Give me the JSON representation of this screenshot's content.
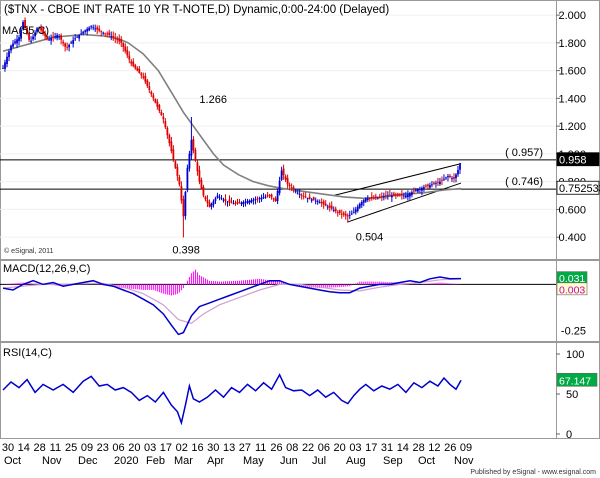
{
  "header": {
    "title": "($TNX - CBOE INT RATE 10 YR T-NOTE,D) Dynamic,0:00-24:00 (Delayed)",
    "ma_label": "MA(55,C)"
  },
  "watermark": "© eSignal, 2011",
  "footer": {
    "published": "Published by eSignal - www.esignal.com"
  },
  "colors": {
    "up_candle": "#0000cc",
    "down_candle": "#dd0000",
    "ma": "#808080",
    "macd_line": "#0000cc",
    "signal_line": "#d0a0d0",
    "histogram": "#ff00ff",
    "rsi_line": "#0000cc",
    "price_badge": "#000000",
    "current_badge": "#00aa44",
    "macd_badge_bg": "#ffffcc"
  },
  "chart_data": [
    {
      "type": "candlestick",
      "title": "($TNX - CBOE INT RATE 10 YR T-NOTE,D) Dynamic,0:00-24:00 (Delayed)",
      "ylim": [
        0.25,
        2.08
      ],
      "yticks": [
        "2.000",
        "1.800",
        "1.600",
        "1.400",
        "1.200",
        "1.000",
        "0.800",
        "0.600",
        "0.400"
      ],
      "ytick_values": [
        2.0,
        1.8,
        1.6,
        1.4,
        1.2,
        1.0,
        0.8,
        0.6,
        0.4
      ],
      "points": [
        [
          0,
          1.62
        ],
        [
          8,
          1.78
        ],
        [
          16,
          1.84
        ],
        [
          20,
          1.95
        ],
        [
          27,
          1.8
        ],
        [
          35,
          1.92
        ],
        [
          45,
          1.82
        ],
        [
          55,
          1.86
        ],
        [
          63,
          1.76
        ],
        [
          70,
          1.82
        ],
        [
          80,
          1.88
        ],
        [
          88,
          1.92
        ],
        [
          98,
          1.88
        ],
        [
          108,
          1.85
        ],
        [
          118,
          1.8
        ],
        [
          128,
          1.65
        ],
        [
          140,
          1.55
        ],
        [
          150,
          1.4
        ],
        [
          160,
          1.25
        ],
        [
          168,
          1.02
        ],
        [
          176,
          0.78
        ],
        [
          180,
          0.55
        ],
        [
          184,
          0.9
        ],
        [
          188,
          1.1
        ],
        [
          192,
          0.95
        ],
        [
          196,
          0.8
        ],
        [
          200,
          0.7
        ],
        [
          206,
          0.62
        ],
        [
          214,
          0.7
        ],
        [
          222,
          0.66
        ],
        [
          232,
          0.64
        ],
        [
          244,
          0.66
        ],
        [
          256,
          0.68
        ],
        [
          266,
          0.7
        ],
        [
          272,
          0.66
        ],
        [
          278,
          0.88
        ],
        [
          284,
          0.78
        ],
        [
          294,
          0.72
        ],
        [
          304,
          0.68
        ],
        [
          314,
          0.66
        ],
        [
          324,
          0.62
        ],
        [
          334,
          0.58
        ],
        [
          344,
          0.55
        ],
        [
          350,
          0.58
        ],
        [
          356,
          0.64
        ],
        [
          362,
          0.68
        ],
        [
          372,
          0.68
        ],
        [
          382,
          0.7
        ],
        [
          392,
          0.7
        ],
        [
          402,
          0.7
        ],
        [
          412,
          0.74
        ],
        [
          420,
          0.76
        ],
        [
          428,
          0.78
        ],
        [
          436,
          0.8
        ],
        [
          444,
          0.84
        ],
        [
          450,
          0.82
        ],
        [
          455,
          0.9
        ],
        [
          457,
          0.95
        ]
      ],
      "ma": [
        [
          0,
          1.74
        ],
        [
          20,
          1.78
        ],
        [
          50,
          1.84
        ],
        [
          80,
          1.86
        ],
        [
          100,
          1.85
        ],
        [
          115,
          1.83
        ],
        [
          125,
          1.8
        ],
        [
          140,
          1.72
        ],
        [
          155,
          1.6
        ],
        [
          170,
          1.42
        ],
        [
          180,
          1.3
        ],
        [
          190,
          1.2
        ],
        [
          200,
          1.1
        ],
        [
          210,
          1.0
        ],
        [
          220,
          0.92
        ],
        [
          235,
          0.85
        ],
        [
          250,
          0.8
        ],
        [
          265,
          0.77
        ],
        [
          280,
          0.75
        ],
        [
          300,
          0.73
        ],
        [
          320,
          0.71
        ],
        [
          340,
          0.69
        ],
        [
          360,
          0.68
        ],
        [
          380,
          0.69
        ],
        [
          400,
          0.71
        ],
        [
          420,
          0.72
        ],
        [
          440,
          0.74
        ],
        [
          457,
          0.75
        ]
      ],
      "annotations": [
        {
          "label": "1.266",
          "value": 1.266
        },
        {
          "label": "0.398",
          "value": 0.398
        },
        {
          "label": "0.504",
          "value": 0.504
        },
        {
          "label": "( 0.957)",
          "value": 0.957
        },
        {
          "label": "( 0.746)",
          "value": 0.746
        }
      ],
      "hlines": [
        0.957,
        0.746
      ],
      "channel": {
        "lower": [
          [
            344,
            0.51
          ],
          [
            457,
            0.79
          ]
        ],
        "upper": [
          [
            330,
            0.7
          ],
          [
            457,
            0.93
          ]
        ]
      },
      "price_labels": [
        {
          "label": "0.958",
          "value": 0.958,
          "style": "dark"
        },
        {
          "label": "0.752533",
          "value": 0.752533,
          "style": "light"
        }
      ]
    },
    {
      "type": "line",
      "title": "MACD(12,26,9,C)",
      "ylim": [
        -0.3,
        0.11
      ],
      "yticks": [
        "-0.25"
      ],
      "ytick_values": [
        -0.25
      ],
      "zero_line": 0,
      "macd": [
        [
          0,
          -0.02
        ],
        [
          10,
          -0.03
        ],
        [
          20,
          0.0
        ],
        [
          30,
          0.02
        ],
        [
          40,
          0.0
        ],
        [
          50,
          0.01
        ],
        [
          60,
          -0.01
        ],
        [
          70,
          0.0
        ],
        [
          80,
          0.01
        ],
        [
          90,
          0.02
        ],
        [
          100,
          0.0
        ],
        [
          110,
          -0.01
        ],
        [
          120,
          -0.03
        ],
        [
          130,
          -0.05
        ],
        [
          140,
          -0.08
        ],
        [
          150,
          -0.11
        ],
        [
          160,
          -0.16
        ],
        [
          168,
          -0.22
        ],
        [
          175,
          -0.27
        ],
        [
          180,
          -0.26
        ],
        [
          188,
          -0.17
        ],
        [
          196,
          -0.12
        ],
        [
          206,
          -0.1
        ],
        [
          216,
          -0.08
        ],
        [
          226,
          -0.06
        ],
        [
          236,
          -0.04
        ],
        [
          246,
          -0.02
        ],
        [
          256,
          0.0
        ],
        [
          266,
          0.02
        ],
        [
          276,
          0.02
        ],
        [
          286,
          0.0
        ],
        [
          296,
          -0.01
        ],
        [
          306,
          -0.02
        ],
        [
          316,
          -0.03
        ],
        [
          326,
          -0.04
        ],
        [
          336,
          -0.045
        ],
        [
          346,
          -0.045
        ],
        [
          356,
          -0.02
        ],
        [
          366,
          -0.01
        ],
        [
          376,
          0.0
        ],
        [
          386,
          0.0
        ],
        [
          396,
          0.01
        ],
        [
          406,
          0.02
        ],
        [
          416,
          0.01
        ],
        [
          426,
          0.03
        ],
        [
          436,
          0.04
        ],
        [
          446,
          0.03
        ],
        [
          457,
          0.031
        ]
      ],
      "signal": [
        [
          0,
          -0.02
        ],
        [
          20,
          -0.01
        ],
        [
          40,
          0.0
        ],
        [
          60,
          0.0
        ],
        [
          80,
          0.005
        ],
        [
          100,
          0.005
        ],
        [
          120,
          -0.015
        ],
        [
          140,
          -0.05
        ],
        [
          160,
          -0.11
        ],
        [
          175,
          -0.19
        ],
        [
          188,
          -0.21
        ],
        [
          200,
          -0.16
        ],
        [
          216,
          -0.11
        ],
        [
          236,
          -0.07
        ],
        [
          256,
          -0.03
        ],
        [
          276,
          0.0
        ],
        [
          296,
          0.0
        ],
        [
          316,
          -0.015
        ],
        [
          336,
          -0.03
        ],
        [
          356,
          -0.035
        ],
        [
          376,
          -0.015
        ],
        [
          396,
          0.0
        ],
        [
          416,
          0.01
        ],
        [
          436,
          0.025
        ],
        [
          457,
          0.03
        ]
      ],
      "histogram": [
        [
          0,
          0.0
        ],
        [
          20,
          0.01
        ],
        [
          40,
          0.0
        ],
        [
          60,
          -0.01
        ],
        [
          80,
          0.005
        ],
        [
          100,
          -0.005
        ],
        [
          120,
          -0.02
        ],
        [
          140,
          -0.03
        ],
        [
          150,
          -0.03
        ],
        [
          160,
          -0.05
        ],
        [
          168,
          -0.06
        ],
        [
          175,
          -0.05
        ],
        [
          180,
          -0.02
        ],
        [
          188,
          0.06
        ],
        [
          192,
          0.08
        ],
        [
          196,
          0.05
        ],
        [
          206,
          0.02
        ],
        [
          216,
          0.015
        ],
        [
          236,
          0.02
        ],
        [
          256,
          0.03
        ],
        [
          276,
          0.015
        ],
        [
          296,
          -0.01
        ],
        [
          316,
          -0.02
        ],
        [
          336,
          -0.015
        ],
        [
          346,
          -0.01
        ],
        [
          356,
          0.015
        ],
        [
          376,
          0.015
        ],
        [
          396,
          0.01
        ],
        [
          416,
          0.0
        ],
        [
          436,
          0.01
        ],
        [
          457,
          0.0
        ]
      ],
      "value_labels": [
        {
          "label": "0.031",
          "value": 0.031
        },
        {
          "label": "0.003",
          "value": 0.003
        }
      ]
    },
    {
      "type": "line",
      "title": "RSI(14,C)",
      "ylim": [
        0,
        100
      ],
      "yticks": [
        "100",
        "50",
        "0"
      ],
      "ytick_values": [
        100,
        50,
        0
      ],
      "series": [
        {
          "values": [
            [
              0,
              55
            ],
            [
              8,
              65
            ],
            [
              16,
              58
            ],
            [
              24,
              68
            ],
            [
              32,
              52
            ],
            [
              40,
              62
            ],
            [
              50,
              55
            ],
            [
              60,
              62
            ],
            [
              70,
              52
            ],
            [
              80,
              66
            ],
            [
              88,
              72
            ],
            [
              96,
              60
            ],
            [
              104,
              62
            ],
            [
              112,
              55
            ],
            [
              120,
              58
            ],
            [
              128,
              52
            ],
            [
              136,
              42
            ],
            [
              144,
              48
            ],
            [
              152,
              40
            ],
            [
              160,
              52
            ],
            [
              168,
              36
            ],
            [
              174,
              28
            ],
            [
              178,
              14
            ],
            [
              182,
              36
            ],
            [
              186,
              60
            ],
            [
              190,
              44
            ],
            [
              196,
              40
            ],
            [
              204,
              46
            ],
            [
              212,
              55
            ],
            [
              220,
              46
            ],
            [
              228,
              58
            ],
            [
              236,
              52
            ],
            [
              244,
              62
            ],
            [
              252,
              54
            ],
            [
              260,
              64
            ],
            [
              268,
              56
            ],
            [
              276,
              74
            ],
            [
              282,
              58
            ],
            [
              290,
              54
            ],
            [
              298,
              55
            ],
            [
              306,
              48
            ],
            [
              314,
              55
            ],
            [
              322,
              46
            ],
            [
              330,
              52
            ],
            [
              338,
              42
            ],
            [
              344,
              38
            ],
            [
              350,
              48
            ],
            [
              356,
              56
            ],
            [
              362,
              62
            ],
            [
              370,
              54
            ],
            [
              378,
              60
            ],
            [
              386,
              56
            ],
            [
              394,
              62
            ],
            [
              402,
              52
            ],
            [
              410,
              64
            ],
            [
              418,
              58
            ],
            [
              426,
              66
            ],
            [
              434,
              60
            ],
            [
              440,
              70
            ],
            [
              446,
              62
            ],
            [
              452,
              56
            ],
            [
              457,
              67.147
            ]
          ]
        }
      ],
      "value_labels": [
        {
          "label": "67.147",
          "value": 67.147
        }
      ]
    },
    {
      "type": "axis",
      "day_labels": [
        "30",
        "14",
        "28",
        "11",
        "25",
        "09",
        "23",
        "06",
        "20",
        "03",
        "17",
        "02",
        "16",
        "30",
        "13",
        "27",
        "11",
        "26",
        "08",
        "22",
        "06",
        "20",
        "03",
        "17",
        "31",
        "14",
        "28",
        "12",
        "26",
        "09"
      ],
      "month_labels": [
        "Oct",
        "Nov",
        "Dec",
        "2020",
        "Feb",
        "Mar",
        "Apr",
        "May",
        "Jun",
        "Jul",
        "Aug",
        "Sep",
        "Oct",
        "Nov"
      ]
    }
  ]
}
